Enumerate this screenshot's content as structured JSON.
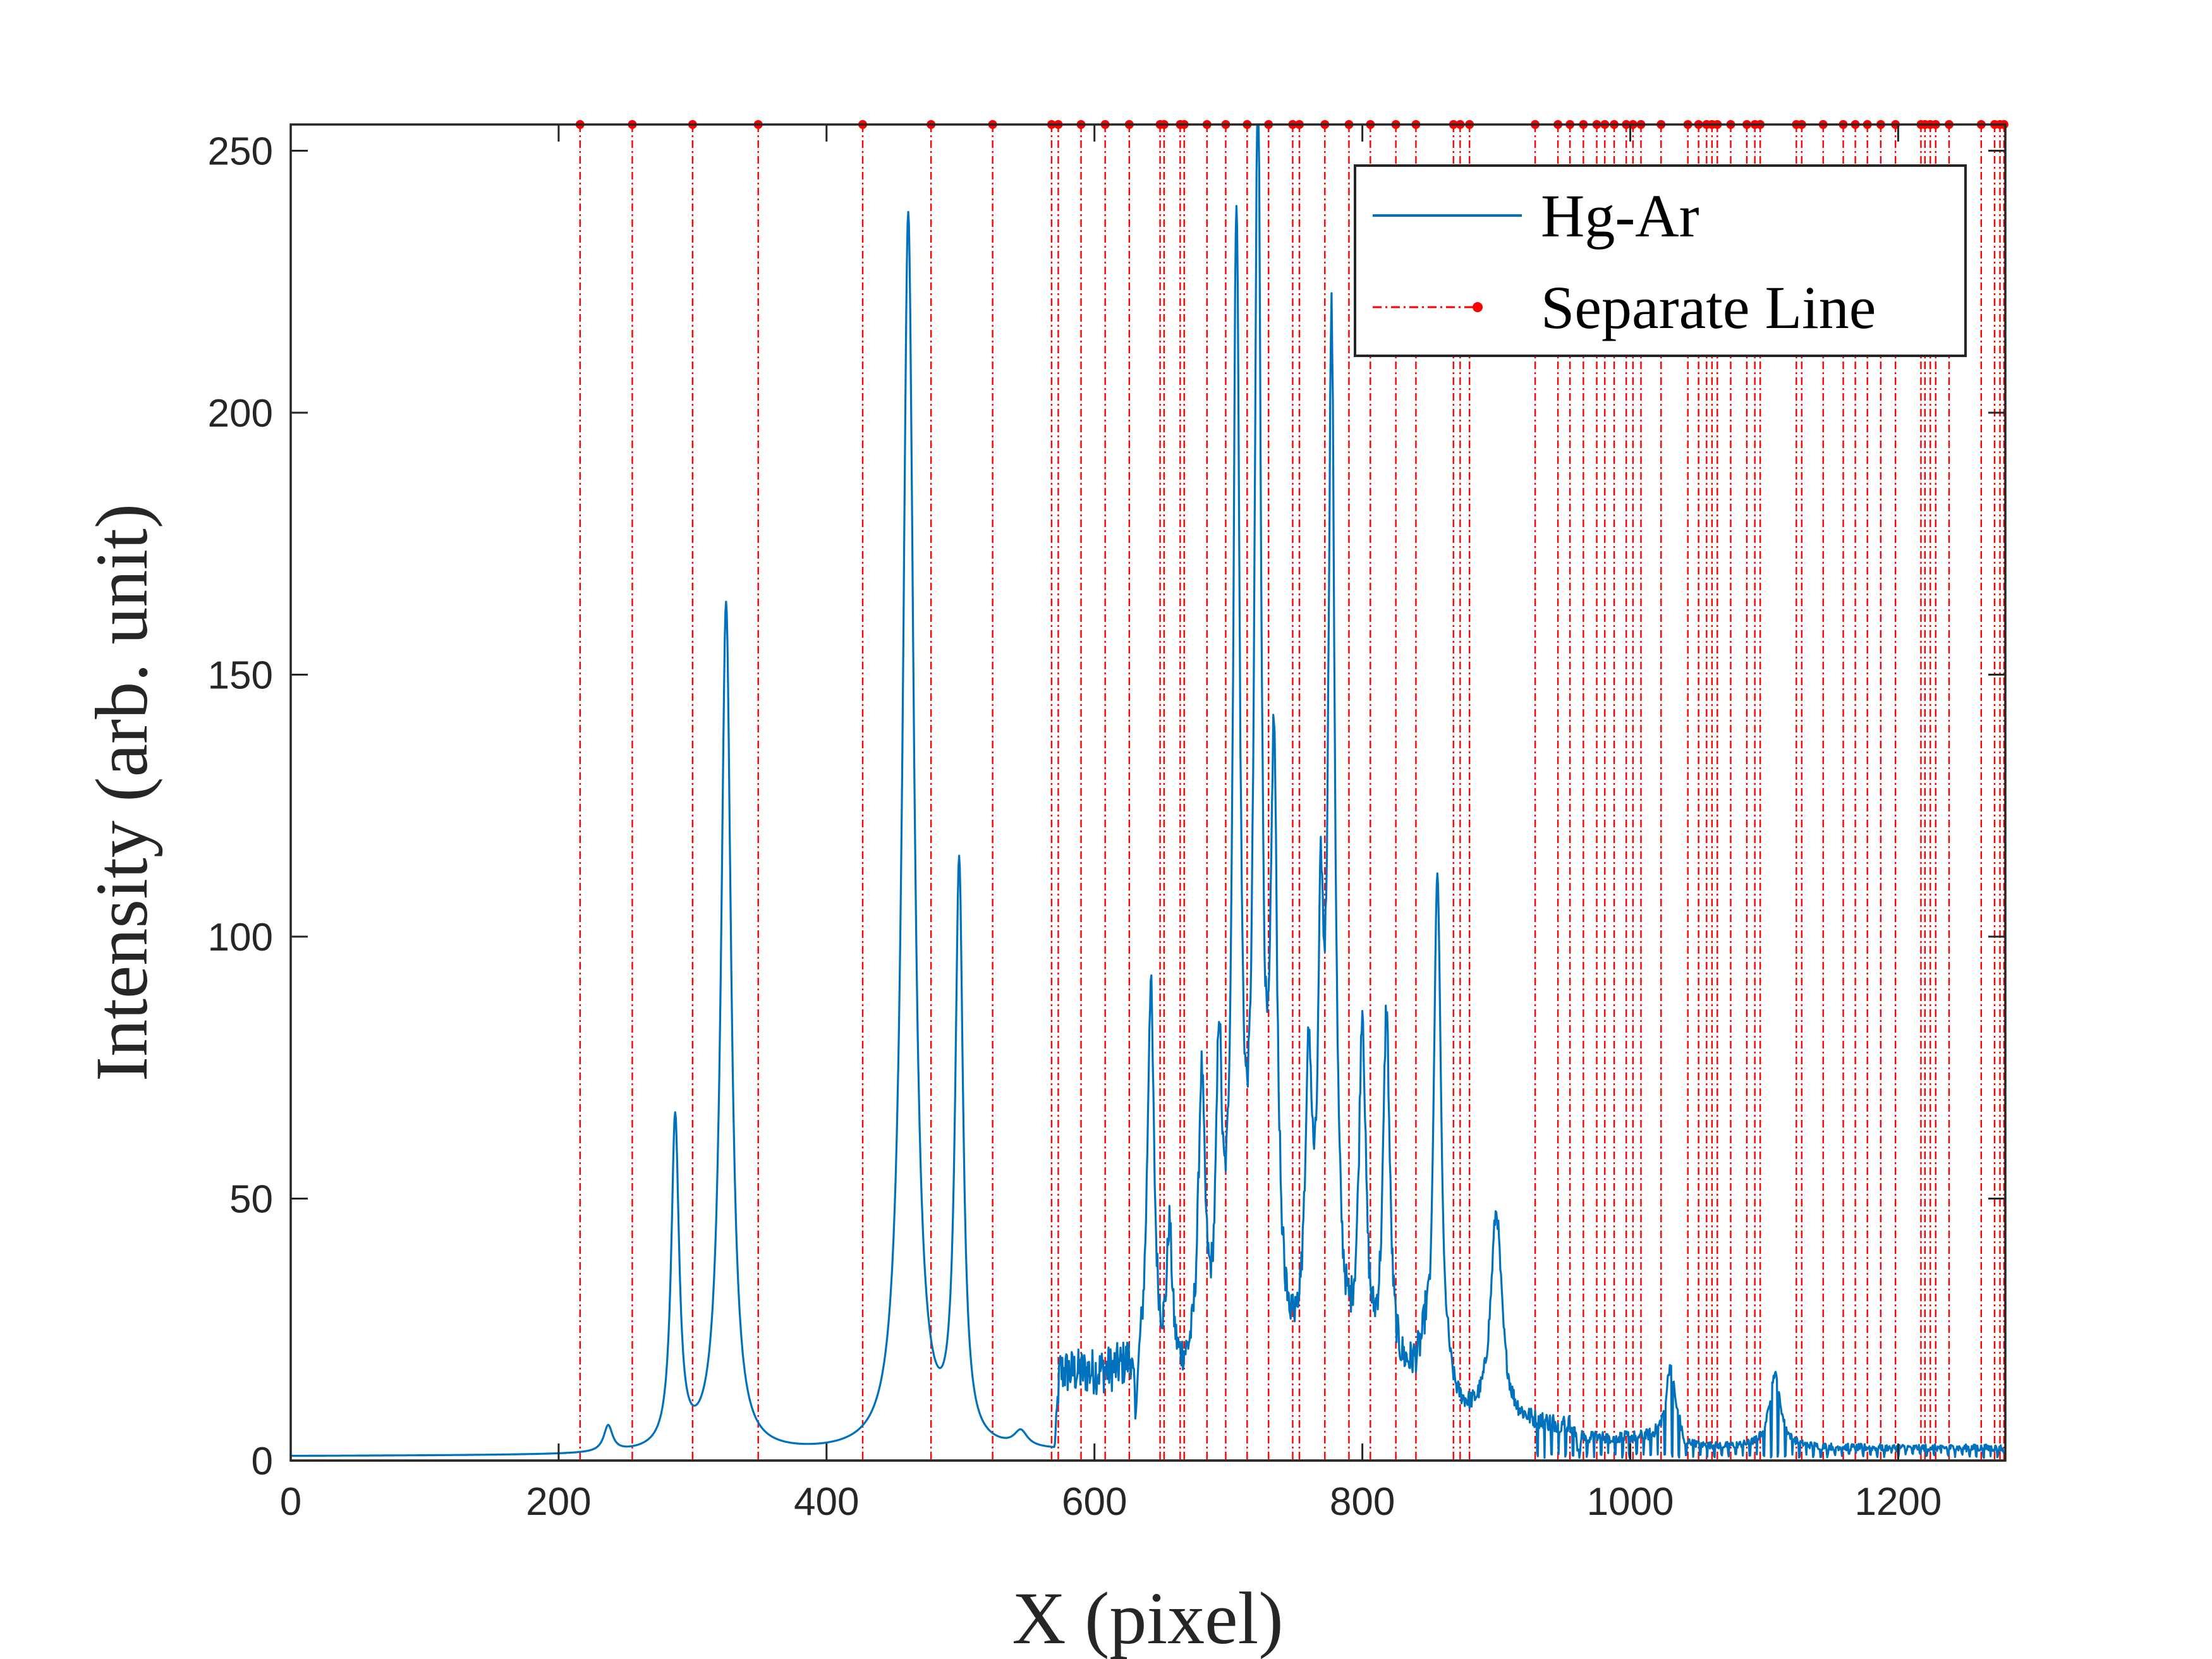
{
  "chart_data": {
    "type": "line",
    "xlabel": "X (pixel)",
    "ylabel": "Intensity (arb. unit)",
    "xlim": [
      0,
      1280
    ],
    "ylim": [
      0,
      255
    ],
    "xticks": [
      0,
      200,
      400,
      600,
      800,
      1000,
      1200
    ],
    "yticks": [
      0,
      50,
      100,
      150,
      200,
      250
    ],
    "grid": false,
    "legend_position": "top-right",
    "colors": {
      "spectrum": "#0072BD",
      "separate_line": "#FF0000",
      "axis": "#262626"
    },
    "series": [
      {
        "name": "Hg-Ar",
        "style": "solid",
        "baseline": 0.8,
        "peaks": [
          {
            "x": 237,
            "y": 5,
            "w": 4
          },
          {
            "x": 287,
            "y": 63,
            "w": 3.5
          },
          {
            "x": 325,
            "y": 162,
            "w": 4.5
          },
          {
            "x": 461,
            "y": 236,
            "w": 5
          },
          {
            "x": 499,
            "y": 110,
            "w": 3.5
          },
          {
            "x": 545,
            "y": 3,
            "w": 6
          },
          {
            "x": 642,
            "y": 76,
            "w": 3
          },
          {
            "x": 656,
            "y": 27,
            "w": 2.5
          },
          {
            "x": 680,
            "y": 55,
            "w": 3
          },
          {
            "x": 693,
            "y": 56,
            "w": 2.5
          },
          {
            "x": 706,
            "y": 217,
            "w": 3
          },
          {
            "x": 722,
            "y": 240,
            "w": 3
          },
          {
            "x": 734,
            "y": 110,
            "w": 3
          },
          {
            "x": 760,
            "y": 55,
            "w": 3
          },
          {
            "x": 769,
            "y": 70,
            "w": 2.5
          },
          {
            "x": 777,
            "y": 196,
            "w": 3
          },
          {
            "x": 800,
            "y": 67,
            "w": 3
          },
          {
            "x": 818,
            "y": 69,
            "w": 3
          },
          {
            "x": 856,
            "y": 109,
            "w": 3.5
          },
          {
            "x": 900,
            "y": 40,
            "w": 5
          },
          {
            "x": 1030,
            "y": 14,
            "w": 4
          },
          {
            "x": 1108,
            "y": 14,
            "w": 5
          }
        ],
        "regions": [
          {
            "from": 570,
            "to": 630,
            "level": 20
          },
          {
            "from": 630,
            "to": 760,
            "level": 16
          },
          {
            "from": 740,
            "to": 850,
            "level": 16
          },
          {
            "from": 860,
            "to": 960,
            "level": 8
          },
          {
            "from": 960,
            "to": 1040,
            "level": 5
          },
          {
            "from": 1040,
            "to": 1280,
            "level": 3
          }
        ]
      },
      {
        "name": "Separate Line",
        "style": "dash-dot with dot markers",
        "x": [
          216,
          255,
          300,
          349,
          427,
          478,
          524,
          568,
          573,
          590,
          608,
          626,
          649,
          652,
          664,
          667,
          684,
          698,
          714,
          730,
          748,
          753,
          772,
          790,
          806,
          825,
          840,
          868,
          873,
          880,
          929,
          946,
          955,
          965,
          975,
          981,
          988,
          997,
          1002,
          1008,
          1023,
          1043,
          1051,
          1057,
          1061,
          1065,
          1075,
          1087,
          1093,
          1097,
          1124,
          1128,
          1144,
          1159,
          1168,
          1177,
          1187,
          1198,
          1217,
          1220,
          1224,
          1228,
          1238,
          1262,
          1272,
          1276,
          1279
        ]
      }
    ]
  }
}
